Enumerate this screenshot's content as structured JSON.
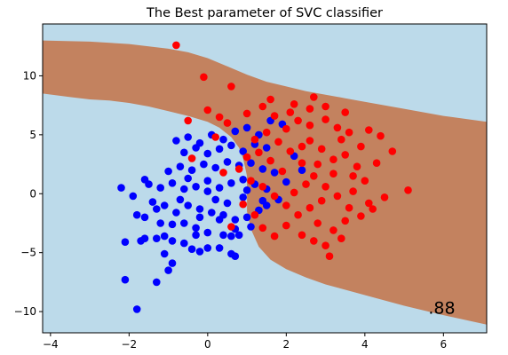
{
  "chart_data": {
    "type": "scatter",
    "title": "The Best parameter of SVC classifier",
    "xlabel": "",
    "ylabel": "",
    "xlim": [
      -4.2,
      7.1
    ],
    "ylim": [
      -11.8,
      14.4
    ],
    "x_ticks": [
      -4,
      -2,
      0,
      2,
      4,
      6
    ],
    "y_ticks": [
      -10,
      -5,
      0,
      5,
      10
    ],
    "grid": false,
    "legend": "none",
    "annotation": ".88",
    "annotation_position": {
      "x": 6.3,
      "y": -10.2
    },
    "background_regions": [
      {
        "class": "blue",
        "color": "#bcdaea"
      },
      {
        "class": "red",
        "color": "#c3825f"
      }
    ],
    "decision_boundary": {
      "upper": [
        [
          -4.2,
          13.0
        ],
        [
          -3.0,
          12.9
        ],
        [
          -2.0,
          12.7
        ],
        [
          -1.0,
          12.3
        ],
        [
          -0.5,
          12.0
        ],
        [
          0.0,
          11.5
        ],
        [
          0.5,
          10.8
        ],
        [
          1.0,
          10.1
        ],
        [
          1.5,
          9.5
        ],
        [
          2.0,
          9.1
        ],
        [
          2.5,
          8.7
        ],
        [
          3.0,
          8.4
        ],
        [
          3.5,
          8.1
        ],
        [
          4.0,
          7.8
        ],
        [
          5.0,
          7.2
        ],
        [
          6.0,
          6.6
        ],
        [
          7.1,
          6.1
        ]
      ],
      "lower": [
        [
          -4.2,
          8.5
        ],
        [
          -3.5,
          8.2
        ],
        [
          -3.0,
          8.0
        ],
        [
          -2.5,
          7.9
        ],
        [
          -2.0,
          7.7
        ],
        [
          -1.5,
          7.4
        ],
        [
          -1.0,
          7.0
        ],
        [
          -0.5,
          6.6
        ],
        [
          0.0,
          6.1
        ],
        [
          0.3,
          5.6
        ],
        [
          0.6,
          4.8
        ],
        [
          0.8,
          3.9
        ],
        [
          0.9,
          3.0
        ],
        [
          1.0,
          1.5
        ],
        [
          1.0,
          0.0
        ],
        [
          1.0,
          -1.5
        ],
        [
          1.1,
          -3.0
        ],
        [
          1.3,
          -4.5
        ],
        [
          1.6,
          -5.6
        ],
        [
          2.0,
          -6.4
        ],
        [
          2.5,
          -7.1
        ],
        [
          3.0,
          -7.7
        ],
        [
          4.0,
          -8.6
        ],
        [
          5.0,
          -9.5
        ],
        [
          6.0,
          -10.3
        ],
        [
          7.1,
          -11.1
        ]
      ]
    },
    "series": [
      {
        "color": "#0000ff",
        "points": [
          [
            -2.1,
            -7.3
          ],
          [
            -1.8,
            -9.8
          ],
          [
            -1.3,
            -7.5
          ],
          [
            -1.0,
            -6.5
          ],
          [
            -0.9,
            -5.9
          ],
          [
            -2.1,
            -4.1
          ],
          [
            -1.7,
            -4.0
          ],
          [
            -1.6,
            -3.8
          ],
          [
            -1.3,
            -3.8
          ],
          [
            -1.1,
            -3.6
          ],
          [
            -0.9,
            -4.0
          ],
          [
            -0.6,
            -4.2
          ],
          [
            -0.4,
            -4.7
          ],
          [
            -0.2,
            -4.9
          ],
          [
            0.0,
            -4.6
          ],
          [
            0.3,
            -4.6
          ],
          [
            0.6,
            -5.1
          ],
          [
            0.7,
            -5.3
          ],
          [
            -1.2,
            -2.5
          ],
          [
            -0.9,
            -2.6
          ],
          [
            -0.6,
            -2.5
          ],
          [
            -0.3,
            -2.9
          ],
          [
            0.0,
            -3.3
          ],
          [
            0.4,
            -3.5
          ],
          [
            0.6,
            -3.6
          ],
          [
            0.8,
            -3.5
          ],
          [
            -1.8,
            -1.8
          ],
          [
            -1.6,
            -2.0
          ],
          [
            -1.3,
            -1.3
          ],
          [
            -1.1,
            -1.0
          ],
          [
            -0.8,
            -1.6
          ],
          [
            -0.5,
            -1.0
          ],
          [
            -0.2,
            -1.3
          ],
          [
            0.1,
            -1.6
          ],
          [
            0.4,
            -1.8
          ],
          [
            0.7,
            -2.2
          ],
          [
            1.0,
            -2.0
          ],
          [
            1.3,
            -1.4
          ],
          [
            -1.5,
            0.8
          ],
          [
            -1.2,
            0.5
          ],
          [
            -0.9,
            0.9
          ],
          [
            -0.6,
            0.4
          ],
          [
            -0.3,
            0.6
          ],
          [
            0.0,
            0.2
          ],
          [
            0.3,
            0.5
          ],
          [
            0.6,
            0.9
          ],
          [
            0.9,
            1.2
          ],
          [
            1.2,
            0.8
          ],
          [
            1.5,
            0.4
          ],
          [
            -1.0,
            1.9
          ],
          [
            -0.7,
            2.3
          ],
          [
            -0.4,
            2.0
          ],
          [
            -0.1,
            2.5
          ],
          [
            0.2,
            2.2
          ],
          [
            0.5,
            2.7
          ],
          [
            0.8,
            2.4
          ],
          [
            1.1,
            2.6
          ],
          [
            1.4,
            2.1
          ],
          [
            1.7,
            1.8
          ],
          [
            -0.6,
            3.5
          ],
          [
            -0.3,
            3.9
          ],
          [
            0.0,
            3.4
          ],
          [
            0.3,
            3.8
          ],
          [
            0.6,
            4.1
          ],
          [
            0.9,
            3.6
          ],
          [
            1.2,
            4.2
          ],
          [
            1.5,
            3.9
          ],
          [
            -0.8,
            4.5
          ],
          [
            -0.5,
            4.8
          ],
          [
            -0.2,
            4.3
          ],
          [
            0.1,
            5.0
          ],
          [
            0.4,
            4.6
          ],
          [
            0.7,
            5.3
          ],
          [
            1.0,
            5.6
          ],
          [
            1.3,
            5.0
          ],
          [
            1.6,
            6.2
          ],
          [
            1.9,
            5.9
          ],
          [
            2.2,
            3.2
          ],
          [
            2.4,
            2.0
          ],
          [
            2.0,
            1.0
          ],
          [
            1.8,
            -0.5
          ],
          [
            1.5,
            -1.0
          ],
          [
            1.1,
            -2.8
          ],
          [
            0.7,
            -3.0
          ],
          [
            0.3,
            -2.2
          ],
          [
            -0.2,
            -2.0
          ],
          [
            -0.7,
            -0.5
          ],
          [
            -1.4,
            -0.7
          ],
          [
            -1.9,
            -0.2
          ],
          [
            -1.6,
            1.2
          ],
          [
            -0.5,
            1.3
          ],
          [
            0.2,
            -0.5
          ],
          [
            0.5,
            -0.8
          ],
          [
            0.9,
            -0.3
          ],
          [
            1.4,
            -0.6
          ],
          [
            -2.2,
            0.5
          ],
          [
            -1.1,
            -5.1
          ],
          [
            -0.3,
            -3.5
          ],
          [
            0.0,
            1.1
          ],
          [
            1.0,
            0.3
          ]
        ]
      },
      {
        "color": "#ff0000",
        "points": [
          [
            -0.8,
            12.6
          ],
          [
            -0.1,
            9.9
          ],
          [
            0.6,
            9.1
          ],
          [
            1.4,
            7.4
          ],
          [
            1.6,
            8.0
          ],
          [
            2.2,
            7.6
          ],
          [
            2.7,
            8.2
          ],
          [
            3.0,
            7.4
          ],
          [
            2.6,
            7.2
          ],
          [
            1.0,
            6.8
          ],
          [
            0.3,
            6.5
          ],
          [
            -0.5,
            6.2
          ],
          [
            3.5,
            6.9
          ],
          [
            3.3,
            5.6
          ],
          [
            3.6,
            5.2
          ],
          [
            4.1,
            5.4
          ],
          [
            4.4,
            4.9
          ],
          [
            4.7,
            3.6
          ],
          [
            5.1,
            0.3
          ],
          [
            4.5,
            -0.3
          ],
          [
            4.2,
            -1.3
          ],
          [
            3.9,
            -1.9
          ],
          [
            3.5,
            -2.3
          ],
          [
            3.2,
            -3.1
          ],
          [
            3.0,
            -4.4
          ],
          [
            2.7,
            -4.0
          ],
          [
            3.1,
            -5.3
          ],
          [
            2.4,
            -3.5
          ],
          [
            2.0,
            -2.7
          ],
          [
            1.7,
            -3.6
          ],
          [
            1.4,
            -2.9
          ],
          [
            0.6,
            -2.8
          ],
          [
            2.6,
            4.5
          ],
          [
            2.9,
            3.8
          ],
          [
            3.2,
            2.9
          ],
          [
            3.5,
            3.3
          ],
          [
            3.8,
            2.3
          ],
          [
            4.0,
            1.1
          ],
          [
            3.7,
            0.2
          ],
          [
            3.3,
            -0.2
          ],
          [
            3.0,
            0.6
          ],
          [
            2.7,
            1.5
          ],
          [
            2.4,
            2.6
          ],
          [
            2.1,
            3.6
          ],
          [
            1.8,
            4.4
          ],
          [
            1.5,
            5.2
          ],
          [
            1.2,
            4.6
          ],
          [
            1.0,
            3.1
          ],
          [
            0.8,
            2.1
          ],
          [
            1.1,
            1.1
          ],
          [
            1.4,
            0.6
          ],
          [
            1.7,
            -0.2
          ],
          [
            2.0,
            -1.0
          ],
          [
            2.3,
            -1.8
          ],
          [
            2.6,
            -1.2
          ],
          [
            2.9,
            -0.6
          ],
          [
            3.2,
            1.7
          ],
          [
            2.8,
            2.5
          ],
          [
            2.5,
            0.8
          ],
          [
            2.2,
            0.1
          ],
          [
            1.9,
            1.9
          ],
          [
            1.6,
            2.8
          ],
          [
            1.3,
            3.5
          ],
          [
            2.0,
            5.5
          ],
          [
            2.3,
            6.2
          ],
          [
            2.6,
            5.8
          ],
          [
            3.9,
            4.0
          ],
          [
            4.3,
            2.6
          ],
          [
            4.1,
            -0.8
          ],
          [
            3.6,
            -1.2
          ],
          [
            3.4,
            -3.8
          ],
          [
            2.8,
            -2.5
          ],
          [
            0.2,
            4.8
          ],
          [
            0.5,
            6.0
          ],
          [
            1.7,
            6.6
          ],
          [
            2.1,
            6.9
          ],
          [
            3.0,
            6.3
          ],
          [
            3.4,
            4.6
          ],
          [
            1.2,
            -1.8
          ],
          [
            0.9,
            -0.9
          ],
          [
            0.0,
            7.1
          ],
          [
            -0.4,
            3.0
          ],
          [
            0.4,
            1.8
          ],
          [
            2.4,
            4.0
          ],
          [
            3.7,
            1.5
          ]
        ]
      }
    ]
  }
}
